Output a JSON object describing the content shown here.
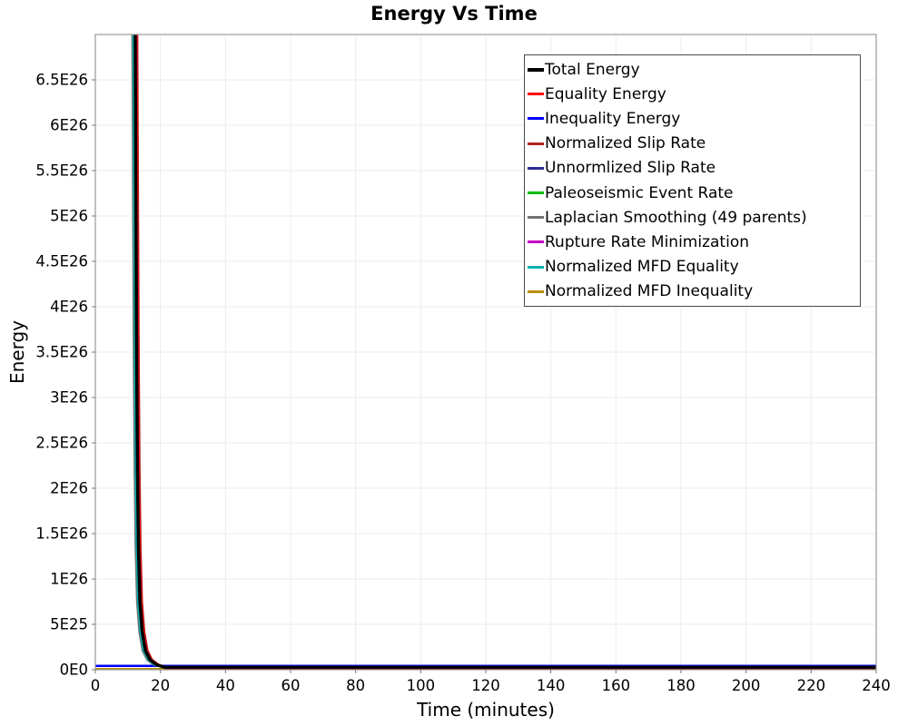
{
  "chart_data": {
    "type": "line",
    "title": "Energy Vs Time",
    "xlabel": "Time (minutes)",
    "ylabel": "Energy",
    "xlim": [
      0,
      240
    ],
    "ylim": [
      0,
      7e+26
    ],
    "grid": true,
    "legend_position": "top-right-inside",
    "colors": {
      "background": "#ffffff",
      "gridline": "#ebebeb",
      "plot_border": "#999999",
      "tick_mark": "#777777",
      "legend_border": "#4b4b4b",
      "text": "#000000"
    },
    "x_ticks": {
      "values": [
        0,
        20,
        40,
        60,
        80,
        100,
        120,
        140,
        160,
        180,
        200,
        220,
        240
      ],
      "labels": [
        "0",
        "20",
        "40",
        "60",
        "80",
        "100",
        "120",
        "140",
        "160",
        "180",
        "200",
        "220",
        "240"
      ]
    },
    "y_ticks": {
      "values": [
        0,
        5e+25,
        1e+26,
        1.5e+26,
        2e+26,
        2.5e+26,
        3e+26,
        3.5e+26,
        4e+26,
        4.5e+26,
        5e+26,
        5.5e+26,
        6e+26,
        6.5e+26
      ],
      "labels": [
        "0E0",
        "5E25",
        "1E26",
        "1.5E26",
        "2E26",
        "2.5E26",
        "3E26",
        "3.5E26",
        "4E26",
        "4.5E26",
        "5E26",
        "5.5E26",
        "6E26",
        "6.5E26"
      ]
    },
    "decay_profile": {
      "t_minutes": [
        12.25,
        12.35,
        12.5,
        12.7,
        12.95,
        13.25,
        13.7,
        14.4,
        15.4,
        16.8,
        18.8,
        21.5,
        26,
        36,
        60,
        120,
        240
      ],
      "energy": [
        7.05e+26,
        6.2e+26,
        4.9e+26,
        3.4e+26,
        2.2e+26,
        1.35e+26,
        7.5e+25,
        4.2e+25,
        2.1e+25,
        1.1e+25,
        5.5e+24,
        3.5e+24,
        2.8e+24,
        2.6e+24,
        2.6e+24,
        2.6e+24,
        2.6e+24
      ]
    },
    "series": [
      {
        "name": "Total Energy",
        "color": "#000000",
        "line_width": 3.5,
        "kind": "decay",
        "t_shift_min": 0,
        "tail_energy": 2.6e+24,
        "draw_order": 10
      },
      {
        "name": "Equality Energy",
        "color": "#ff0000",
        "line_width": 2.5,
        "kind": "decay",
        "t_shift_min": 0.33,
        "tail_energy": 2e+24,
        "draw_order": 9
      },
      {
        "name": "Inequality Energy",
        "color": "#0000ff",
        "line_width": 2.5,
        "kind": "flat",
        "t_shift_min": 0,
        "tail_energy": 4.2e+24,
        "draw_order": 2
      },
      {
        "name": "Normalized Slip Rate",
        "color": "#b22222",
        "line_width": 2.5,
        "kind": "decay",
        "t_shift_min": 0.62,
        "tail_energy": 1.6e+24,
        "draw_order": 8
      },
      {
        "name": "Unnormlized Slip Rate",
        "color": "#2d2d96",
        "line_width": 2.5,
        "kind": "decay",
        "t_shift_min": 0.15,
        "tail_energy": 2.2e+24,
        "draw_order": 5
      },
      {
        "name": "Paleoseismic Event Rate",
        "color": "#00bf00",
        "line_width": 2.5,
        "kind": "decay",
        "t_shift_min": -0.15,
        "tail_energy": 2.5e+24,
        "draw_order": 4
      },
      {
        "name": "Laplacian Smoothing (49 parents)",
        "color": "#737373",
        "line_width": 2.5,
        "kind": "decay",
        "t_shift_min": -0.85,
        "tail_energy": 3.2e+24,
        "draw_order": 6
      },
      {
        "name": "Rupture Rate Minimization",
        "color": "#c400c4",
        "line_width": 2.5,
        "kind": "decay",
        "t_shift_min": -0.65,
        "tail_energy": 2.9e+24,
        "draw_order": 3
      },
      {
        "name": "Normalized MFD Equality",
        "color": "#00b2b2",
        "line_width": 2.5,
        "kind": "decay",
        "t_shift_min": -0.5,
        "tail_energy": 2.7e+24,
        "draw_order": 7
      },
      {
        "name": "Normalized MFD Inequality",
        "color": "#b98f04",
        "line_width": 2.5,
        "kind": "flat",
        "t_shift_min": 0,
        "tail_energy": 8e+23,
        "draw_order": 1
      }
    ]
  }
}
